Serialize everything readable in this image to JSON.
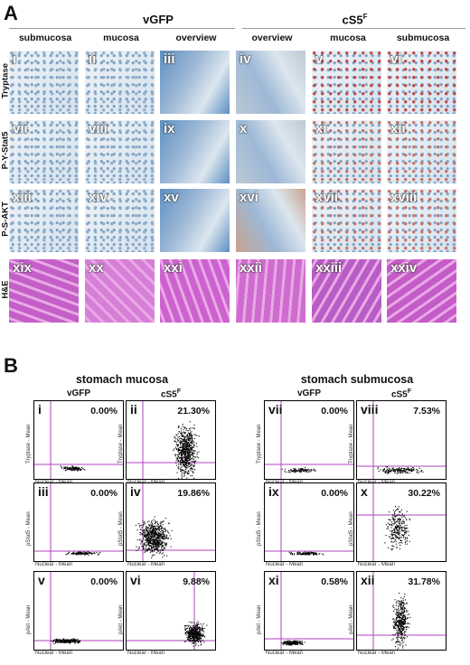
{
  "panel_a": {
    "letter": "A",
    "groups": [
      {
        "label": "vGFP",
        "sup": ""
      },
      {
        "label": "cS5",
        "sup": "F"
      }
    ],
    "columns": [
      "submucosa",
      "mucosa",
      "overview",
      "overview",
      "mucosa",
      "submucosa"
    ],
    "rows": [
      "Tryptase",
      "P-Y-Stat5",
      "P-S-AKT",
      "H&E"
    ],
    "tiles": [
      [
        "i",
        "ii",
        "iii",
        "iv",
        "v",
        "vi"
      ],
      [
        "vii",
        "viii",
        "ix",
        "x",
        "xi",
        "xii"
      ],
      [
        "xiii",
        "xiv",
        "xv",
        "xvi",
        "xvii",
        "xviii"
      ],
      [
        "xix",
        "xx",
        "xxi",
        "xxii",
        "xxiii",
        "xxiv"
      ]
    ]
  },
  "panel_b": {
    "letter": "B",
    "titles": [
      "stomach mucosa",
      "stomach submucosa"
    ],
    "col_labels": [
      {
        "label": "vGFP",
        "sup": ""
      },
      {
        "label": "cS5",
        "sup": "F"
      },
      {
        "label": "vGFP",
        "sup": ""
      },
      {
        "label": "cS5",
        "sup": "F"
      }
    ],
    "x_axis": "Nuclear - Mean",
    "y_axes": [
      "Tryptase - Mean",
      "pStat5 - Mean",
      "pAkt - Mean"
    ],
    "plots": [
      [
        {
          "num": "i",
          "pct": "0.00%"
        },
        {
          "num": "ii",
          "pct": "21.30%"
        },
        {
          "num": "vii",
          "pct": "0.00%"
        },
        {
          "num": "viii",
          "pct": "7.53%"
        }
      ],
      [
        {
          "num": "iii",
          "pct": "0.00%"
        },
        {
          "num": "iv",
          "pct": "19.86%"
        },
        {
          "num": "ix",
          "pct": "0.00%"
        },
        {
          "num": "x",
          "pct": "30.22%"
        }
      ],
      [
        {
          "num": "v",
          "pct": "0.00%"
        },
        {
          "num": "vi",
          "pct": "9.88%"
        },
        {
          "num": "xi",
          "pct": "0.58%"
        },
        {
          "num": "xii",
          "pct": "31.78%"
        }
      ]
    ]
  },
  "colors": {
    "gate_line": "#b040c0",
    "he_stain": "#d27fd0",
    "ihc_blue": "#6f9bc0",
    "ihc_red": "#b8433a"
  }
}
